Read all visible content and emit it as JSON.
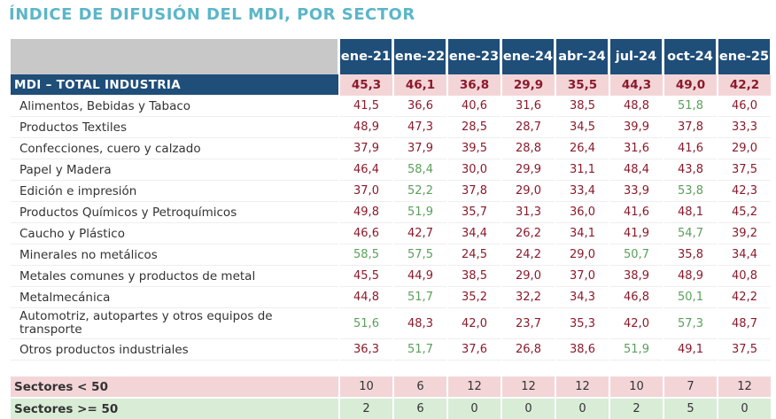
{
  "title": "ÍNDICE DE DIFUSIÓN DEL MDI, POR SECTOR",
  "chart_data": {
    "type": "table",
    "columns": [
      "ene-21",
      "ene-22",
      "ene-23",
      "ene-24",
      "abr-24",
      "jul-24",
      "oct-24",
      "ene-25"
    ],
    "total": {
      "label": "MDI – TOTAL INDUSTRIA",
      "values": [
        "45,3",
        "46,1",
        "36,8",
        "29,9",
        "35,5",
        "44,3",
        "49,0",
        "42,2"
      ]
    },
    "rows": [
      {
        "label": "Alimentos, Bebidas y Tabaco",
        "values": [
          "41,5",
          "36,6",
          "40,6",
          "31,6",
          "38,5",
          "48,8",
          "51,8",
          "46,0"
        ]
      },
      {
        "label": "Productos Textiles",
        "values": [
          "48,9",
          "47,3",
          "28,5",
          "28,7",
          "34,5",
          "39,9",
          "37,8",
          "33,3"
        ]
      },
      {
        "label": "Confecciones, cuero y calzado",
        "values": [
          "37,9",
          "37,9",
          "39,5",
          "28,8",
          "26,4",
          "31,6",
          "41,6",
          "29,0"
        ]
      },
      {
        "label": "Papel y Madera",
        "values": [
          "46,4",
          "58,4",
          "30,0",
          "29,9",
          "31,1",
          "48,4",
          "43,8",
          "37,5"
        ]
      },
      {
        "label": "Edición e impresión",
        "values": [
          "37,0",
          "52,2",
          "37,8",
          "29,0",
          "33,4",
          "33,9",
          "53,8",
          "42,3"
        ]
      },
      {
        "label": "Productos Químicos y Petroquímicos",
        "values": [
          "49,8",
          "51,9",
          "35,7",
          "31,3",
          "36,0",
          "41,6",
          "48,1",
          "45,2"
        ]
      },
      {
        "label": "Caucho y Plástico",
        "values": [
          "46,6",
          "42,7",
          "34,4",
          "26,2",
          "34,1",
          "41,9",
          "54,7",
          "39,2"
        ]
      },
      {
        "label": "Minerales no metálicos",
        "values": [
          "58,5",
          "57,5",
          "24,5",
          "24,2",
          "29,0",
          "50,7",
          "35,8",
          "34,4"
        ]
      },
      {
        "label": "Metales comunes y productos de metal",
        "values": [
          "45,5",
          "44,9",
          "38,5",
          "29,0",
          "37,0",
          "38,9",
          "48,9",
          "40,8"
        ]
      },
      {
        "label": "Metalmecánica",
        "values": [
          "44,8",
          "51,7",
          "35,2",
          "32,2",
          "34,3",
          "46,8",
          "50,1",
          "42,2"
        ]
      },
      {
        "label": "Automotriz, autopartes y otros equipos de transporte",
        "values": [
          "51,6",
          "48,3",
          "42,0",
          "23,7",
          "35,3",
          "42,0",
          "57,3",
          "48,7"
        ]
      },
      {
        "label": "Otros productos industriales",
        "values": [
          "36,3",
          "51,7",
          "37,6",
          "26,8",
          "38,6",
          "51,9",
          "49,1",
          "37,5"
        ]
      }
    ],
    "summary": [
      {
        "label": "Sectores < 50",
        "values": [
          "10",
          "6",
          "12",
          "12",
          "12",
          "10",
          "7",
          "12"
        ]
      },
      {
        "label": "Sectores >= 50",
        "values": [
          "2",
          "6",
          "0",
          "0",
          "0",
          "2",
          "5",
          "0"
        ]
      }
    ],
    "threshold": 50
  }
}
